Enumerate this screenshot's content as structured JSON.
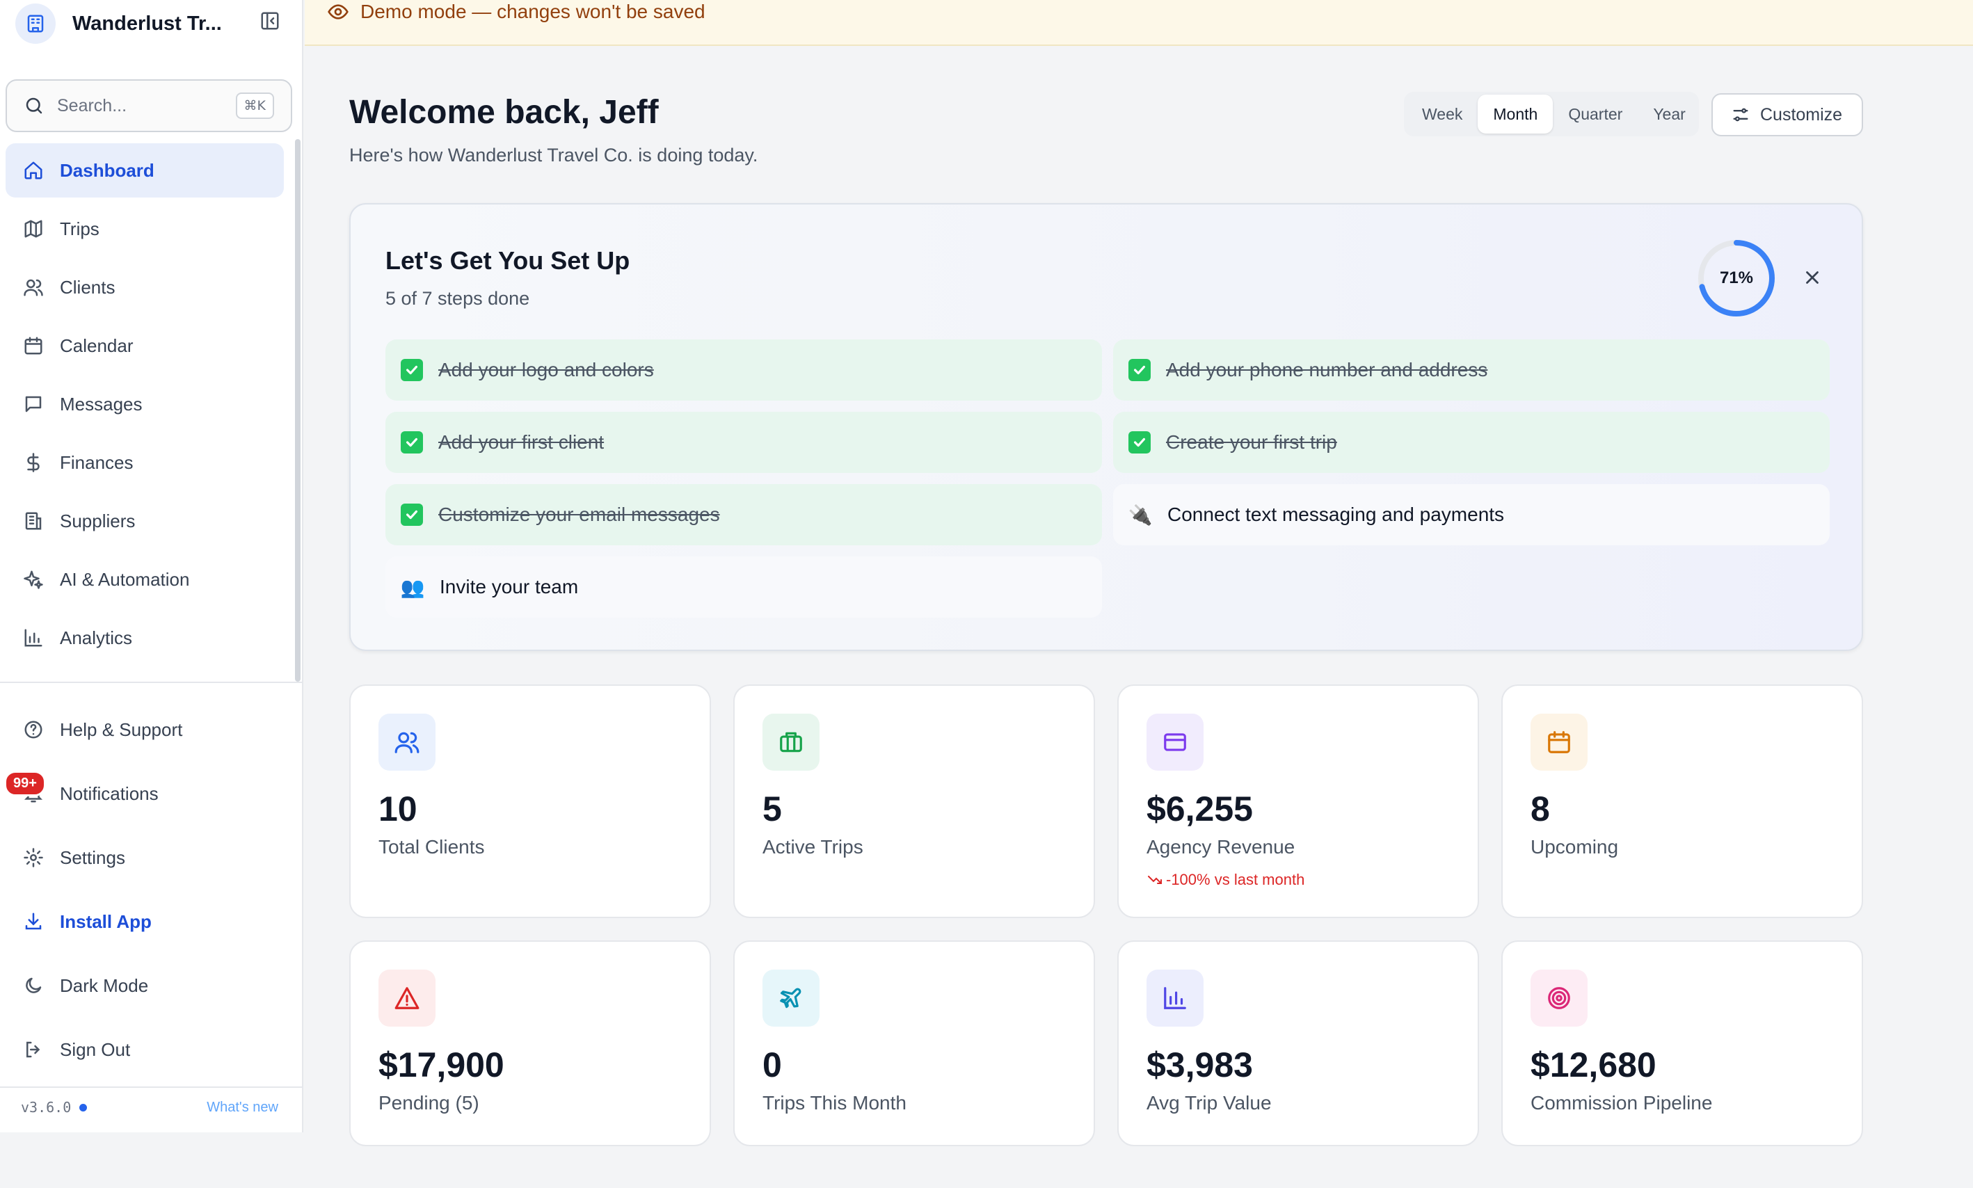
{
  "app": {
    "name": "Wanderlust Tr...",
    "version": "v3.6.0",
    "whats_new": "What's new"
  },
  "search": {
    "placeholder": "Search...",
    "shortcut": "⌘K"
  },
  "sidebar": {
    "items": [
      {
        "label": "Dashboard",
        "icon": "home-icon",
        "active": true
      },
      {
        "label": "Trips",
        "icon": "map-icon"
      },
      {
        "label": "Clients",
        "icon": "users-icon"
      },
      {
        "label": "Calendar",
        "icon": "calendar-icon"
      },
      {
        "label": "Messages",
        "icon": "message-icon"
      },
      {
        "label": "Finances",
        "icon": "dollar-icon"
      },
      {
        "label": "Suppliers",
        "icon": "building-icon"
      },
      {
        "label": "AI & Automation",
        "icon": "sparkles-icon"
      },
      {
        "label": "Analytics",
        "icon": "bar-chart-icon"
      }
    ],
    "bottom_items": [
      {
        "label": "Help & Support",
        "icon": "help-circle-icon"
      },
      {
        "label": "Notifications",
        "icon": "bell-icon",
        "badge": "99+"
      },
      {
        "label": "Settings",
        "icon": "gear-icon"
      },
      {
        "label": "Install App",
        "icon": "download-icon"
      },
      {
        "label": "Dark Mode",
        "icon": "moon-icon"
      },
      {
        "label": "Sign Out",
        "icon": "sign-out-icon"
      }
    ]
  },
  "banner": {
    "text": "Demo mode — changes won't be saved"
  },
  "header": {
    "title": "Welcome back, Jeff",
    "subtitle": "Here's how Wanderlust Travel Co. is doing today.",
    "periods": [
      "Week",
      "Month",
      "Quarter",
      "Year"
    ],
    "active_period": "Month",
    "customize_label": "Customize"
  },
  "setup": {
    "title": "Let's Get You Set Up",
    "subtitle": "5 of 7 steps done",
    "progress_label": "71%",
    "progress": 0.71,
    "steps": [
      {
        "label": "Add your logo and colors",
        "done": true
      },
      {
        "label": "Add your phone number and address",
        "done": true
      },
      {
        "label": "Add your first client",
        "done": true
      },
      {
        "label": "Create your first trip",
        "done": true
      },
      {
        "label": "Customize your email messages",
        "done": true
      },
      {
        "label": "Connect text messaging and payments",
        "done": false,
        "icon": "🔌"
      },
      {
        "label": "Invite your team",
        "done": false,
        "icon": "👥"
      }
    ]
  },
  "stats": [
    {
      "value": "10",
      "label": "Total Clients",
      "icon": "users-icon",
      "color": "#2563eb",
      "bg": "#eaf1fd"
    },
    {
      "value": "5",
      "label": "Active Trips",
      "icon": "briefcase-icon",
      "color": "#16a34a",
      "bg": "#e8f6ee"
    },
    {
      "value": "$6,255",
      "label": "Agency Revenue",
      "icon": "credit-card-icon",
      "color": "#7c3aed",
      "bg": "#f1ecfd",
      "trend": "-100% vs last month"
    },
    {
      "value": "8",
      "label": "Upcoming",
      "icon": "calendar-icon",
      "color": "#d97706",
      "bg": "#fdf4e6"
    },
    {
      "value": "$17,900",
      "label": "Pending (5)",
      "icon": "alert-triangle-icon",
      "color": "#dc2626",
      "bg": "#fdecec"
    },
    {
      "value": "0",
      "label": "Trips This Month",
      "icon": "plane-icon",
      "color": "#0891b2",
      "bg": "#e6f6fa"
    },
    {
      "value": "$3,983",
      "label": "Avg Trip Value",
      "icon": "bar-chart-icon",
      "color": "#4f46e5",
      "bg": "#eceefd"
    },
    {
      "value": "$12,680",
      "label": "Commission Pipeline",
      "icon": "target-icon",
      "color": "#db2777",
      "bg": "#fdecf4"
    }
  ]
}
